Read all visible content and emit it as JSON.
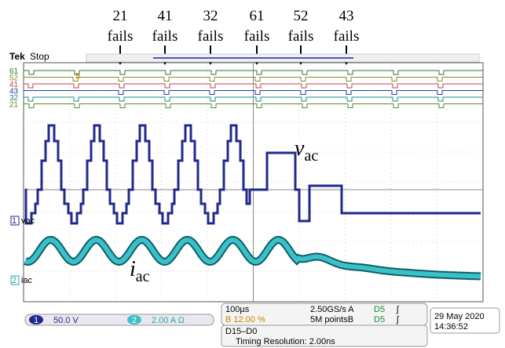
{
  "annotations": [
    {
      "count": "21",
      "label": "fails"
    },
    {
      "count": "41",
      "label": "fails"
    },
    {
      "count": "32",
      "label": "fails"
    },
    {
      "count": "61",
      "label": "fails"
    },
    {
      "count": "52",
      "label": "fails"
    },
    {
      "count": "43",
      "label": "fails"
    }
  ],
  "scope": {
    "brand": "Tek",
    "status": "Stop",
    "digital_channels": [
      "61",
      "52",
      "41",
      "43",
      "32",
      "21"
    ],
    "trigger_marker": "B",
    "ch1": {
      "number": "1",
      "name": "vac",
      "scale": "50.0 V"
    },
    "ch2": {
      "number": "2",
      "name": "iac",
      "scale": "2.00 A Ω"
    },
    "timebase": "100µs",
    "position": "B 12.00 %",
    "sample_rate": "2.50GS/s A",
    "record_length": "5M pointsB",
    "trigger_sources": [
      "D5",
      "D5"
    ],
    "date": "29 May 2020",
    "time": "14:36:52",
    "bus": "D15–D0",
    "timing_resolution": "Timing Resolution: 2.00ns"
  },
  "labels": {
    "vac": {
      "main": "v",
      "sub": "ac"
    },
    "iac": {
      "main": "i",
      "sub": "ac"
    }
  }
}
